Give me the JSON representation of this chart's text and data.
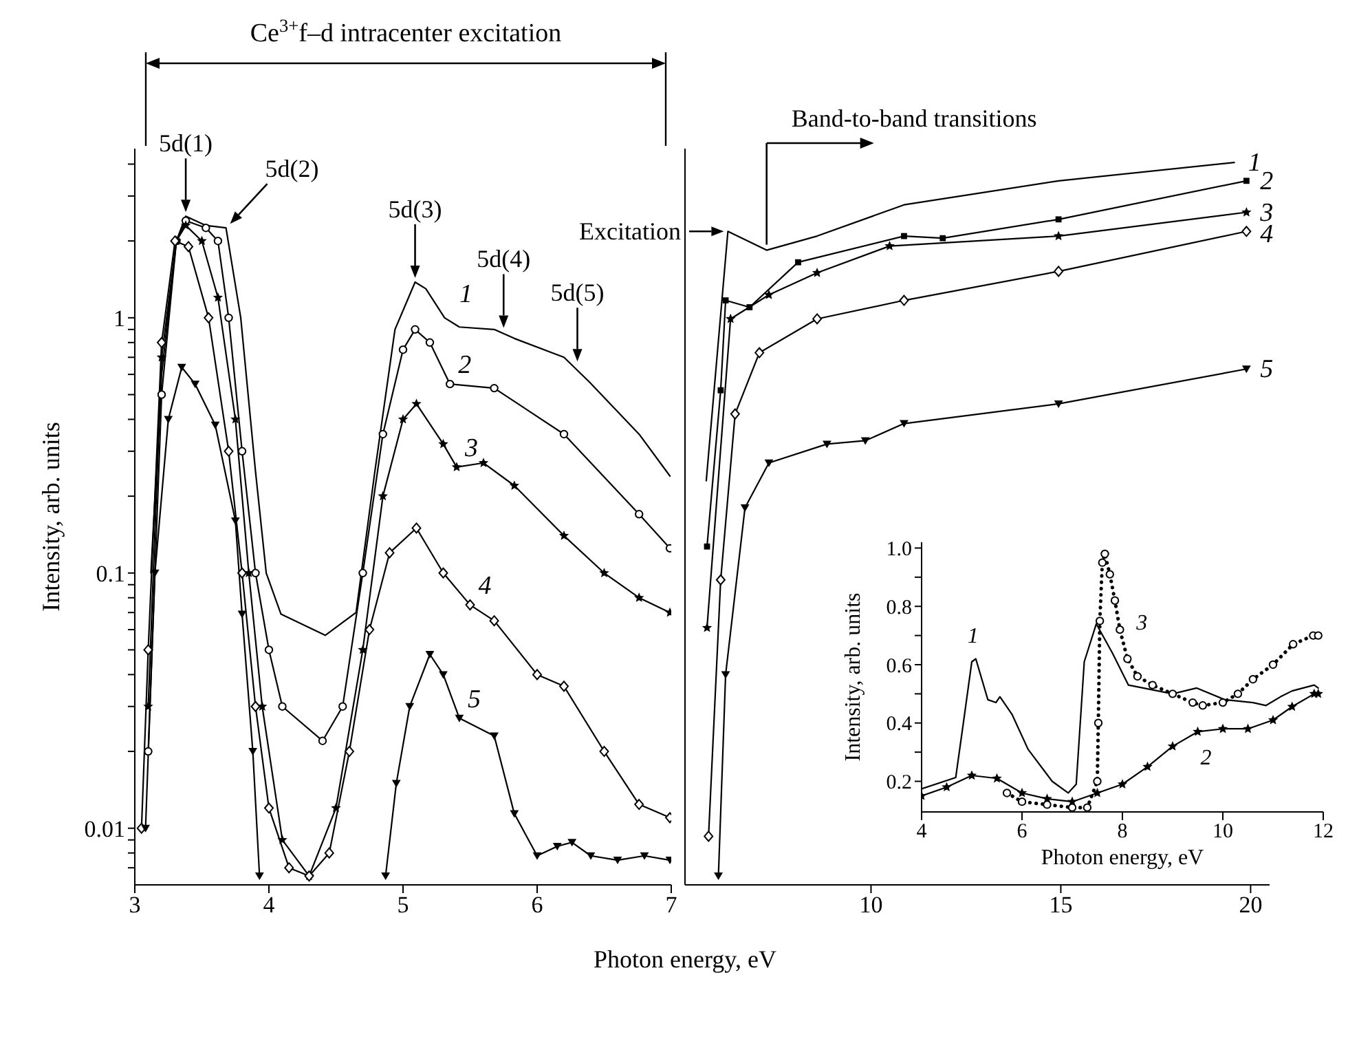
{
  "chart_data": [
    {
      "type": "line",
      "xlabel": "Photon energy, eV",
      "ylabel": "Intensity, arb. units",
      "xlim": [
        3,
        7
      ],
      "xticks": [
        3,
        4,
        5,
        6,
        7
      ],
      "ylim": [
        0.006,
        4.6
      ],
      "log": "y",
      "yticks": [
        {
          "value": 0.007,
          "label": null
        },
        {
          "value": 0.008,
          "label": null
        },
        {
          "value": 0.009,
          "label": null
        },
        0.01,
        {
          "value": 0.02,
          "label": null
        },
        {
          "value": 0.03,
          "label": null
        },
        {
          "value": 0.04,
          "label": null
        },
        {
          "value": 0.05,
          "label": null
        },
        {
          "value": 0.06,
          "label": null
        },
        {
          "value": 0.07,
          "label": null
        },
        {
          "value": 0.08,
          "label": null
        },
        {
          "value": 0.09,
          "label": null
        },
        0.1,
        {
          "value": 0.2,
          "label": null
        },
        {
          "value": 0.3,
          "label": null
        },
        {
          "value": 0.4,
          "label": null
        },
        {
          "value": 0.5,
          "label": null
        },
        {
          "value": 0.6,
          "label": null
        },
        {
          "value": 0.7,
          "label": null
        },
        {
          "value": 0.8,
          "label": null
        },
        {
          "value": 0.9,
          "label": null
        },
        1,
        {
          "value": 2,
          "label": null
        },
        {
          "value": 3,
          "label": null
        },
        {
          "value": 4,
          "label": null
        }
      ],
      "annotations": [
        "Ce$^{3+}$f–d intracenter excitation",
        {
          "text": "5d(1)",
          "x": 3.38,
          "y": 2.5
        },
        {
          "text": "5d(2)",
          "x": 3.68,
          "y": 2.25
        },
        {
          "text": "5d(3)",
          "x": 5.09,
          "y": 1.38
        },
        {
          "text": "5d(4)",
          "x": 5.75,
          "y": 0.88
        },
        {
          "text": "5d(5)",
          "x": 6.3,
          "y": 0.65
        }
      ],
      "series": [
        {
          "name": "1",
          "color": "#000000",
          "marker": "none",
          "x": [
            3.12,
            3.2,
            3.31,
            3.38,
            3.53,
            3.68,
            3.79,
            3.9,
            3.98,
            4.09,
            4.42,
            4.65,
            4.79,
            4.94,
            5.09,
            5.17,
            5.31,
            5.42,
            5.68,
            5.83,
            6.2,
            6.39,
            6.76,
            6.99
          ],
          "values": [
            0.1,
            0.6,
            2.0,
            2.5,
            2.3,
            2.25,
            1.0,
            0.25,
            0.1,
            0.069,
            0.057,
            0.07,
            0.25,
            0.9,
            1.38,
            1.3,
            1.0,
            0.92,
            0.9,
            0.83,
            0.7,
            0.56,
            0.35,
            0.24
          ]
        },
        {
          "name": "2",
          "color": "#000000",
          "marker": "circle",
          "x": [
            3.1,
            3.2,
            3.31,
            3.38,
            3.53,
            3.62,
            3.7,
            3.8,
            3.9,
            4.0,
            4.1,
            4.4,
            4.55,
            4.7,
            4.85,
            5.0,
            5.09,
            5.2,
            5.35,
            5.68,
            6.2,
            6.76,
            6.99
          ],
          "values": [
            0.02,
            0.5,
            2.0,
            2.4,
            2.25,
            2.0,
            1.0,
            0.3,
            0.1,
            0.05,
            0.03,
            0.022,
            0.03,
            0.1,
            0.35,
            0.75,
            0.9,
            0.8,
            0.55,
            0.53,
            0.35,
            0.17,
            0.125
          ]
        },
        {
          "name": "3",
          "color": "#000000",
          "marker": "star",
          "x": [
            3.1,
            3.2,
            3.31,
            3.38,
            3.5,
            3.62,
            3.75,
            3.85,
            3.95,
            4.1,
            4.3,
            4.5,
            4.7,
            4.85,
            5.0,
            5.1,
            5.3,
            5.4,
            5.6,
            5.83,
            6.2,
            6.5,
            6.76,
            6.99
          ],
          "values": [
            0.03,
            0.7,
            2.0,
            2.3,
            2.0,
            1.2,
            0.4,
            0.1,
            0.03,
            0.009,
            0.0065,
            0.012,
            0.05,
            0.2,
            0.4,
            0.46,
            0.32,
            0.26,
            0.27,
            0.22,
            0.14,
            0.1,
            0.08,
            0.07
          ]
        },
        {
          "name": "4",
          "color": "#000000",
          "marker": "diamond",
          "x": [
            3.05,
            3.1,
            3.2,
            3.3,
            3.4,
            3.55,
            3.7,
            3.8,
            3.9,
            4.0,
            4.15,
            4.3,
            4.45,
            4.6,
            4.75,
            4.9,
            5.1,
            5.3,
            5.5,
            5.68,
            6.0,
            6.2,
            6.5,
            6.76,
            6.99
          ],
          "values": [
            0.01,
            0.05,
            0.8,
            2.0,
            1.9,
            1.0,
            0.3,
            0.1,
            0.03,
            0.012,
            0.007,
            0.0065,
            0.008,
            0.02,
            0.06,
            0.12,
            0.15,
            0.1,
            0.075,
            0.065,
            0.04,
            0.036,
            0.02,
            0.0124,
            0.011
          ]
        },
        {
          "name": "5",
          "color": "#000000",
          "marker": "triangle",
          "x": [
            3.08,
            3.15,
            3.25,
            3.35,
            3.45,
            3.6,
            3.75,
            3.8,
            3.88,
            3.93,
            4.4,
            4.87,
            4.95,
            5.05,
            5.2,
            5.3,
            5.42,
            5.68,
            5.83,
            6.0,
            6.15,
            6.26,
            6.4,
            6.6,
            6.8,
            6.99
          ],
          "values": [
            0.01,
            0.1,
            0.4,
            0.64,
            0.55,
            0.38,
            0.16,
            0.069,
            0.02,
            0.0065,
            null,
            0.0065,
            0.015,
            0.03,
            0.048,
            0.04,
            0.027,
            0.023,
            0.0114,
            0.0078,
            0.0085,
            0.0088,
            0.0078,
            0.0075,
            0.0078,
            0.0075
          ]
        }
      ]
    },
    {
      "type": "line",
      "xlim": [
        5.1,
        20.5
      ],
      "xticks": [
        10,
        15,
        20
      ],
      "ylim": [
        0.006,
        4.6
      ],
      "yticks": [
        0.01,
        0.1,
        1
      ],
      "log": "y",
      "tick_labels": "x",
      "annotations": [
        {
          "text": "Excitation",
          "x": 6.23,
          "y": 2.18
        },
        {
          "text": "Band-to-band transitions",
          "x": 7.25,
          "y": 1.84
        }
      ],
      "series": [
        {
          "name": "1",
          "color": "#000000",
          "marker": "none",
          "x": [
            5.66,
            6.23,
            7.25,
            8.58,
            10.87,
            14.94,
            19.57
          ],
          "values": [
            0.23,
            2.18,
            1.84,
            2.09,
            2.77,
            3.44,
            4.06
          ]
        },
        {
          "name": "2",
          "color": "#000000",
          "marker": "square",
          "x": [
            5.68,
            6.04,
            6.17,
            6.8,
            8.08,
            10.87,
            11.89,
            14.94,
            19.89
          ],
          "values": [
            0.127,
            0.52,
            1.17,
            1.1,
            1.65,
            2.09,
            2.05,
            2.43,
            3.44
          ]
        },
        {
          "name": "3",
          "color": "#000000",
          "marker": "star",
          "x": [
            5.68,
            6.3,
            7.31,
            8.58,
            10.49,
            14.94,
            19.89
          ],
          "values": [
            0.061,
            0.99,
            1.23,
            1.5,
            1.91,
            2.09,
            2.59
          ]
        },
        {
          "name": "4",
          "color": "#000000",
          "marker": "diamond",
          "x": [
            5.72,
            6.04,
            6.42,
            7.06,
            8.58,
            10.87,
            14.94,
            19.89
          ],
          "values": [
            0.0093,
            0.094,
            0.42,
            0.73,
            0.99,
            1.17,
            1.52,
            2.18
          ]
        },
        {
          "name": "5",
          "color": "#000000",
          "marker": "triangle",
          "x": [
            5.98,
            6.17,
            6.68,
            7.31,
            8.84,
            9.85,
            10.87,
            14.94,
            19.89
          ],
          "values": [
            0.0065,
            0.04,
            0.18,
            0.27,
            0.32,
            0.33,
            0.385,
            0.46,
            0.63
          ]
        }
      ]
    },
    {
      "type": "line",
      "xlabel": "Photon energy, eV",
      "ylabel": "Intensity, arb. units",
      "xlim": [
        4,
        12
      ],
      "xticks": [
        4,
        6,
        8,
        10,
        12
      ],
      "ylim": [
        0.095,
        1.02
      ],
      "yticks": [
        0.2,
        {
          "value": 0.3,
          "label": null
        },
        0.4,
        {
          "value": 0.5,
          "label": null
        },
        0.6,
        {
          "value": 0.7,
          "label": null
        },
        0.8,
        {
          "value": 0.9,
          "label": null
        },
        {
          "value": 1,
          "label": "1.0"
        }
      ],
      "series": [
        {
          "name": "1",
          "color": "#000000",
          "marker": "none",
          "x": [
            4,
            4.68,
            4.84,
            5.0,
            5.08,
            5.32,
            5.48,
            5.56,
            5.8,
            6.12,
            6.6,
            6.92,
            7.08,
            7.24,
            7.48,
            7.8,
            8.12,
            9.0,
            9.48,
            10.04,
            10.6,
            10.86,
            11.15,
            11.38,
            11.82,
            11.9
          ],
          "values": [
            0.174,
            0.213,
            0.41,
            0.61,
            0.62,
            0.48,
            0.47,
            0.49,
            0.43,
            0.31,
            0.2,
            0.16,
            0.19,
            0.61,
            0.74,
            0.64,
            0.53,
            0.5,
            0.52,
            0.48,
            0.47,
            0.46,
            0.49,
            0.51,
            0.53,
            0.52
          ]
        },
        {
          "name": "2",
          "color": "#000000",
          "marker": "star",
          "x": [
            4,
            4.5,
            5,
            5.5,
            6,
            6.5,
            7,
            7.5,
            8,
            8.5,
            9,
            9.5,
            10,
            10.5,
            11,
            11.38,
            11.82,
            11.9
          ],
          "values": [
            0.15,
            0.18,
            0.22,
            0.21,
            0.16,
            0.14,
            0.13,
            0.16,
            0.19,
            0.25,
            0.32,
            0.37,
            0.38,
            0.38,
            0.41,
            0.456,
            0.5,
            0.5
          ]
        },
        {
          "name": "3",
          "color": "#000000",
          "marker": "circle",
          "line_style": "dotted",
          "x": [
            5.7,
            6,
            6.5,
            7,
            7.3,
            7.5,
            7.52,
            7.55,
            7.6,
            7.65,
            7.75,
            7.85,
            7.95,
            8.1,
            8.3,
            8.6,
            9,
            9.4,
            9.6,
            10,
            10.3,
            10.6,
            11,
            11.4,
            11.8,
            11.9
          ],
          "values": [
            0.16,
            0.13,
            0.12,
            0.11,
            0.11,
            0.2,
            0.4,
            0.75,
            0.95,
            0.98,
            0.91,
            0.82,
            0.72,
            0.62,
            0.56,
            0.53,
            0.5,
            0.47,
            0.46,
            0.47,
            0.5,
            0.55,
            0.6,
            0.67,
            0.7,
            0.7
          ]
        }
      ]
    }
  ]
}
